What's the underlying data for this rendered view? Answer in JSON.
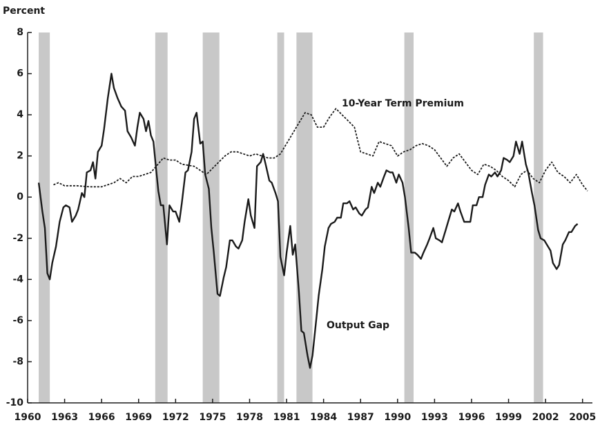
{
  "chart_data": {
    "type": "line",
    "ylabel": "Percent",
    "xlim": [
      1960,
      2005.8
    ],
    "ylim": [
      -10,
      8
    ],
    "xticks": [
      1960,
      1963,
      1966,
      1969,
      1972,
      1975,
      1978,
      1981,
      1984,
      1987,
      1990,
      1993,
      1996,
      1999,
      2002,
      2005
    ],
    "yticks": [
      -10,
      -8,
      -6,
      -4,
      -2,
      0,
      2,
      4,
      6,
      8
    ],
    "grid": false,
    "shade_color": "#c8c8c8",
    "shaded_periods": [
      [
        1960.9,
        1961.8
      ],
      [
        1970.35,
        1971.35
      ],
      [
        1974.2,
        1975.55
      ],
      [
        1980.25,
        1980.8
      ],
      [
        1981.8,
        1983.1
      ],
      [
        1990.55,
        1991.3
      ],
      [
        2001.05,
        2001.8
      ]
    ],
    "series": [
      {
        "name": "Output Gap",
        "color": "#1a1a1a",
        "dash": "solid",
        "x": [
          1960.9,
          1961.2,
          1961.4,
          1961.6,
          1961.8,
          1962.0,
          1962.3,
          1962.6,
          1962.9,
          1963.1,
          1963.4,
          1963.6,
          1963.9,
          1964.1,
          1964.4,
          1964.6,
          1964.8,
          1965.1,
          1965.3,
          1965.5,
          1965.7,
          1966.0,
          1966.2,
          1966.5,
          1966.8,
          1967.0,
          1967.3,
          1967.6,
          1967.9,
          1968.1,
          1968.4,
          1968.7,
          1968.9,
          1969.1,
          1969.4,
          1969.6,
          1969.8,
          1970.0,
          1970.2,
          1970.4,
          1970.6,
          1970.8,
          1971.0,
          1971.3,
          1971.5,
          1971.8,
          1972.0,
          1972.3,
          1972.5,
          1972.8,
          1973.0,
          1973.3,
          1973.5,
          1973.7,
          1974.0,
          1974.2,
          1974.4,
          1974.7,
          1974.9,
          1975.1,
          1975.4,
          1975.6,
          1975.9,
          1976.1,
          1976.4,
          1976.6,
          1976.9,
          1977.1,
          1977.4,
          1977.6,
          1977.9,
          1978.1,
          1978.4,
          1978.6,
          1978.9,
          1979.1,
          1979.3,
          1979.6,
          1979.8,
          1980.1,
          1980.3,
          1980.5,
          1980.8,
          1981.0,
          1981.3,
          1981.5,
          1981.7,
          1982.0,
          1982.2,
          1982.4,
          1982.7,
          1982.9,
          1983.1,
          1983.4,
          1983.6,
          1983.9,
          1984.1,
          1984.4,
          1984.6,
          1984.9,
          1985.1,
          1985.4,
          1985.6,
          1985.9,
          1986.1,
          1986.4,
          1986.6,
          1986.9,
          1987.1,
          1987.4,
          1987.6,
          1987.9,
          1988.1,
          1988.4,
          1988.6,
          1988.9,
          1989.1,
          1989.4,
          1989.6,
          1989.9,
          1990.1,
          1990.4,
          1990.6,
          1990.9,
          1991.1,
          1991.4,
          1991.6,
          1991.9,
          1992.1,
          1992.4,
          1992.6,
          1992.9,
          1993.1,
          1993.4,
          1993.6,
          1993.9,
          1994.1,
          1994.4,
          1994.6,
          1994.9,
          1995.1,
          1995.4,
          1995.6,
          1995.9,
          1996.1,
          1996.4,
          1996.6,
          1996.9,
          1997.1,
          1997.4,
          1997.6,
          1997.9,
          1998.1,
          1998.4,
          1998.6,
          1998.9,
          1999.1,
          1999.4,
          1999.6,
          1999.9,
          2000.1,
          2000.4,
          2000.6,
          2000.9,
          2001.1,
          2001.4,
          2001.6,
          2001.9,
          2002.1,
          2002.4,
          2002.6,
          2002.9,
          2003.1,
          2003.4,
          2003.6,
          2003.9,
          2004.1,
          2004.4,
          2004.6
        ],
        "values": [
          0.7,
          -0.7,
          -1.5,
          -3.7,
          -4.0,
          -3.2,
          -2.4,
          -1.2,
          -0.5,
          -0.4,
          -0.5,
          -1.2,
          -0.9,
          -0.6,
          0.2,
          0.0,
          1.2,
          1.3,
          1.7,
          0.9,
          2.2,
          2.5,
          3.3,
          4.8,
          6.0,
          5.3,
          4.8,
          4.4,
          4.2,
          3.2,
          2.9,
          2.5,
          3.4,
          4.1,
          3.8,
          3.2,
          3.7,
          3.0,
          2.7,
          1.5,
          0.3,
          -0.4,
          -0.4,
          -2.3,
          -0.4,
          -0.7,
          -0.7,
          -1.2,
          -0.3,
          1.2,
          1.3,
          2.2,
          3.8,
          4.1,
          2.6,
          2.7,
          1.1,
          0.4,
          -1.5,
          -2.7,
          -4.7,
          -4.8,
          -3.9,
          -3.4,
          -2.1,
          -2.1,
          -2.4,
          -2.5,
          -2.1,
          -1.2,
          -0.1,
          -0.9,
          -1.5,
          1.5,
          1.7,
          2.1,
          1.6,
          0.8,
          0.7,
          0.2,
          -0.2,
          -2.9,
          -3.8,
          -2.7,
          -1.4,
          -2.8,
          -2.3,
          -4.6,
          -6.5,
          -6.6,
          -7.7,
          -8.3,
          -7.7,
          -6.0,
          -4.8,
          -3.5,
          -2.4,
          -1.5,
          -1.3,
          -1.2,
          -1.0,
          -1.0,
          -0.3,
          -0.3,
          -0.2,
          -0.6,
          -0.5,
          -0.8,
          -0.9,
          -0.6,
          -0.5,
          0.5,
          0.2,
          0.7,
          0.5,
          1.0,
          1.3,
          1.2,
          1.2,
          0.7,
          1.1,
          0.7,
          0.0,
          -1.5,
          -2.7,
          -2.7,
          -2.8,
          -3.0,
          -2.7,
          -2.3,
          -2.0,
          -1.5,
          -2.0,
          -2.1,
          -2.2,
          -1.6,
          -1.2,
          -0.6,
          -0.7,
          -0.3,
          -0.7,
          -1.2,
          -1.2,
          -1.2,
          -0.4,
          -0.4,
          0.0,
          0.0,
          0.6,
          1.1,
          1.0,
          1.2,
          1.0,
          1.3,
          1.9,
          1.8,
          1.7,
          2.0,
          2.7,
          2.1,
          2.7,
          1.6,
          1.2,
          0.2,
          -0.4,
          -1.6,
          -2.0,
          -2.1,
          -2.3,
          -2.6,
          -3.2,
          -3.5,
          -3.3,
          -2.3,
          -2.1,
          -1.7,
          -1.7,
          -1.4,
          -1.3
        ]
      },
      {
        "name": "10-Year Term Premium",
        "color": "#1a1a1a",
        "dash": "dotted",
        "x": [
          1962.1,
          1962.5,
          1963,
          1964,
          1965,
          1966,
          1967,
          1967.5,
          1968,
          1968.5,
          1969,
          1970,
          1971,
          1971.5,
          1972,
          1972.5,
          1973.5,
          1974.5,
          1975,
          1975.5,
          1976,
          1976.5,
          1977,
          1977.5,
          1978,
          1978.5,
          1979,
          1979.5,
          1980,
          1980.5,
          1981,
          1981.5,
          1982,
          1982.5,
          1983,
          1983.5,
          1984,
          1984.5,
          1985,
          1985.5,
          1986,
          1986.5,
          1987,
          1987.5,
          1988,
          1988.5,
          1989,
          1989.5,
          1990,
          1990.5,
          1991,
          1991.5,
          1992,
          1992.5,
          1993,
          1993.5,
          1994,
          1994.5,
          1995,
          1995.5,
          1996,
          1996.5,
          1997,
          1997.5,
          1998,
          1998.5,
          1999,
          1999.5,
          2000,
          2000.5,
          2001,
          2001.5,
          2002,
          2002.5,
          2003,
          2003.5,
          2004,
          2004.5,
          2005,
          2005.4
        ],
        "values": [
          0.6,
          0.7,
          0.55,
          0.55,
          0.5,
          0.5,
          0.7,
          0.9,
          0.7,
          1.0,
          1.0,
          1.2,
          1.9,
          1.8,
          1.8,
          1.6,
          1.5,
          1.1,
          1.4,
          1.7,
          2.0,
          2.2,
          2.2,
          2.1,
          2.0,
          2.1,
          2.0,
          1.9,
          1.9,
          2.1,
          2.6,
          3.1,
          3.6,
          4.1,
          4.0,
          3.4,
          3.4,
          3.9,
          4.3,
          4.0,
          3.7,
          3.4,
          2.2,
          2.1,
          2.0,
          2.7,
          2.6,
          2.5,
          2.0,
          2.2,
          2.3,
          2.5,
          2.6,
          2.5,
          2.3,
          1.9,
          1.5,
          1.9,
          2.1,
          1.7,
          1.3,
          1.1,
          1.6,
          1.5,
          1.3,
          1.0,
          0.8,
          0.5,
          1.1,
          1.3,
          0.9,
          0.7,
          1.3,
          1.7,
          1.2,
          1.0,
          0.7,
          1.1,
          0.6,
          0.3
        ]
      }
    ]
  }
}
